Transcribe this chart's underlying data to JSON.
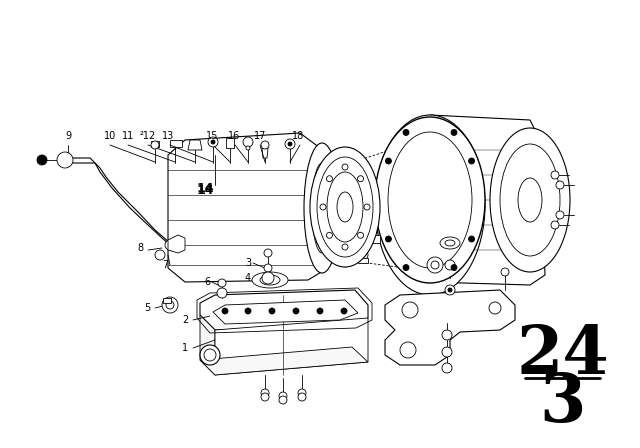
{
  "background_color": "#ffffff",
  "line_color": "#000000",
  "label_num": "24",
  "label_den": "3",
  "label_fontsize": 48,
  "part_fontsize": 7,
  "part_bold_fontsize": 9,
  "white": "#ffffff",
  "black": "#000000",
  "gray_light": "#f0f0f0"
}
